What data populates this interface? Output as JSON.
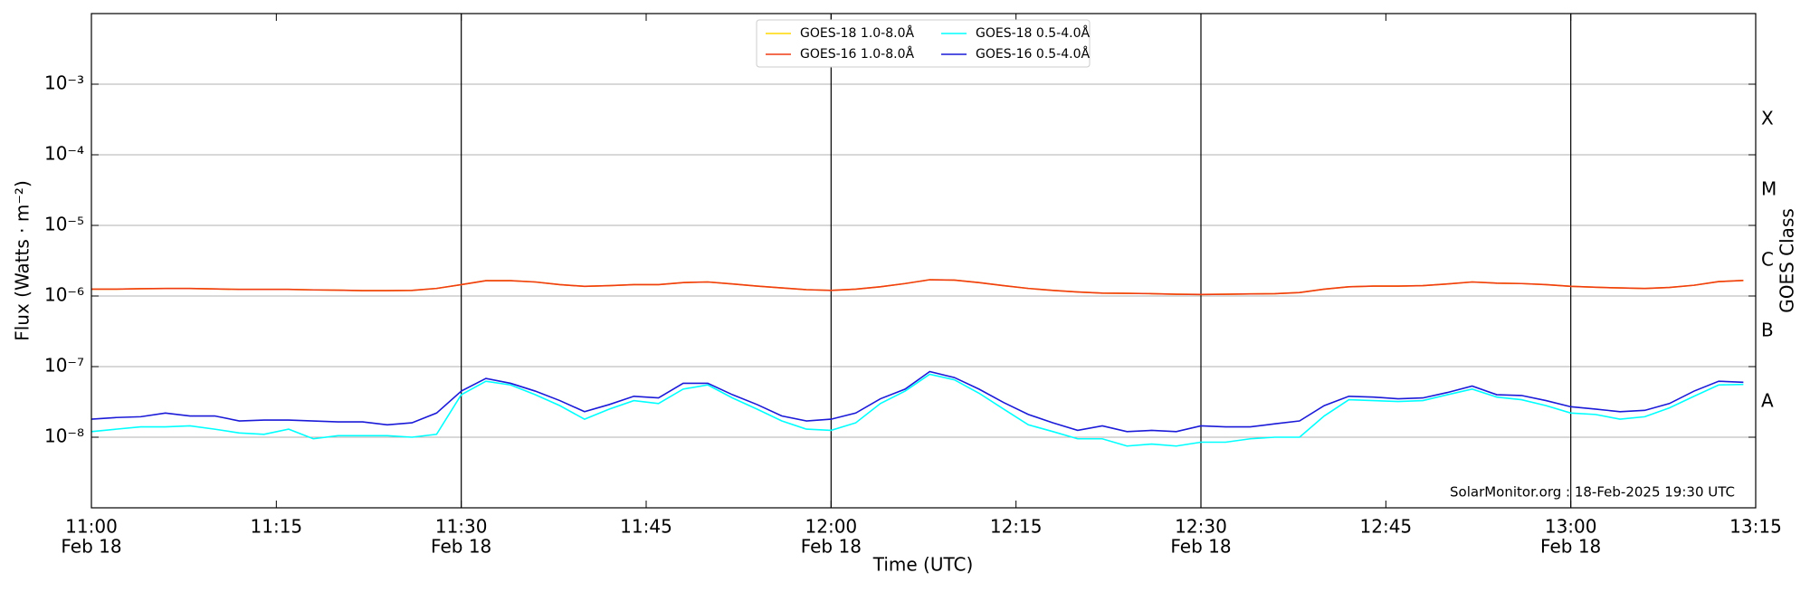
{
  "chart_data": {
    "type": "line",
    "xlabel": "Time (UTC)",
    "ylabel": "Flux (Watts · m⁻²)",
    "y2label": "GOES Class",
    "annotation": "SolarMonitor.org : 18-Feb-2025 19:30 UTC",
    "log_y": true,
    "grid": true,
    "legend": "upper center",
    "xlim": [
      "11:00",
      "13:15"
    ],
    "ylim": [
      1e-09,
      0.01
    ],
    "xticks": [
      {
        "value": "11:00",
        "label": "11:00",
        "sublabel": "Feb 18"
      },
      {
        "value": "11:15",
        "label": "11:15"
      },
      {
        "value": "11:30",
        "label": "11:30",
        "sublabel": "Feb 18"
      },
      {
        "value": "11:45",
        "label": "11:45"
      },
      {
        "value": "12:00",
        "label": "12:00",
        "sublabel": "Feb 18"
      },
      {
        "value": "12:15",
        "label": "12:15"
      },
      {
        "value": "12:30",
        "label": "12:30",
        "sublabel": "Feb 18"
      },
      {
        "value": "12:45",
        "label": "12:45"
      },
      {
        "value": "13:00",
        "label": "13:00",
        "sublabel": "Feb 18"
      },
      {
        "value": "13:15",
        "label": "13:15"
      }
    ],
    "yticks": [
      {
        "value": 1e-08,
        "label": "10⁻⁸"
      },
      {
        "value": 1e-07,
        "label": "10⁻⁷"
      },
      {
        "value": 1e-06,
        "label": "10⁻⁶"
      },
      {
        "value": 1e-05,
        "label": "10⁻⁵"
      },
      {
        "value": 0.0001,
        "label": "10⁻⁴"
      },
      {
        "value": 0.001,
        "label": "10⁻³"
      }
    ],
    "y2ticks": [
      {
        "value": 3.162e-08,
        "label": "A"
      },
      {
        "value": 3.162e-07,
        "label": "B"
      },
      {
        "value": 3.162e-06,
        "label": "C"
      },
      {
        "value": 3.162e-05,
        "label": "M"
      },
      {
        "value": 0.0003162,
        "label": "X"
      }
    ],
    "x": [
      "11:00",
      "11:02",
      "11:04",
      "11:06",
      "11:08",
      "11:10",
      "11:12",
      "11:14",
      "11:16",
      "11:18",
      "11:20",
      "11:22",
      "11:24",
      "11:26",
      "11:28",
      "11:30",
      "11:32",
      "11:34",
      "11:36",
      "11:38",
      "11:40",
      "11:42",
      "11:44",
      "11:46",
      "11:48",
      "11:50",
      "11:52",
      "11:54",
      "11:56",
      "11:58",
      "12:00",
      "12:02",
      "12:04",
      "12:06",
      "12:08",
      "12:10",
      "12:12",
      "12:14",
      "12:16",
      "12:18",
      "12:20",
      "12:22",
      "12:24",
      "12:26",
      "12:28",
      "12:30",
      "12:32",
      "12:34",
      "12:36",
      "12:38",
      "12:40",
      "12:42",
      "12:44",
      "12:46",
      "12:48",
      "12:50",
      "12:52",
      "12:54",
      "12:56",
      "12:58",
      "13:00",
      "13:02",
      "13:04",
      "13:06",
      "13:08",
      "13:10",
      "13:12",
      "13:14"
    ],
    "series": [
      {
        "name": "GOES-18 1.0-8.0Å",
        "color": "#ffd700",
        "values": [
          1.25e-06,
          1.25e-06,
          1.27e-06,
          1.28e-06,
          1.28e-06,
          1.26e-06,
          1.24e-06,
          1.24e-06,
          1.24e-06,
          1.22e-06,
          1.21e-06,
          1.19e-06,
          1.19e-06,
          1.2e-06,
          1.28e-06,
          1.45e-06,
          1.65e-06,
          1.65e-06,
          1.58e-06,
          1.45e-06,
          1.37e-06,
          1.4e-06,
          1.45e-06,
          1.45e-06,
          1.55e-06,
          1.58e-06,
          1.48e-06,
          1.38e-06,
          1.3e-06,
          1.23e-06,
          1.2e-06,
          1.25e-06,
          1.35e-06,
          1.5e-06,
          1.7e-06,
          1.68e-06,
          1.55e-06,
          1.4e-06,
          1.28e-06,
          1.2e-06,
          1.14e-06,
          1.1e-06,
          1.09e-06,
          1.08e-06,
          1.06e-06,
          1.05e-06,
          1.06e-06,
          1.07e-06,
          1.08e-06,
          1.12e-06,
          1.25e-06,
          1.35e-06,
          1.38e-06,
          1.38e-06,
          1.4e-06,
          1.48e-06,
          1.58e-06,
          1.52e-06,
          1.5e-06,
          1.45e-06,
          1.37e-06,
          1.33e-06,
          1.3e-06,
          1.28e-06,
          1.32e-06,
          1.42e-06,
          1.6e-06,
          1.66e-06
        ]
      },
      {
        "name": "GOES-16 1.0-8.0Å",
        "color": "#f03c14",
        "values": [
          1.25e-06,
          1.25e-06,
          1.27e-06,
          1.28e-06,
          1.28e-06,
          1.26e-06,
          1.24e-06,
          1.24e-06,
          1.24e-06,
          1.22e-06,
          1.21e-06,
          1.19e-06,
          1.19e-06,
          1.2e-06,
          1.28e-06,
          1.45e-06,
          1.65e-06,
          1.65e-06,
          1.58e-06,
          1.45e-06,
          1.37e-06,
          1.4e-06,
          1.45e-06,
          1.45e-06,
          1.55e-06,
          1.58e-06,
          1.48e-06,
          1.38e-06,
          1.3e-06,
          1.23e-06,
          1.2e-06,
          1.25e-06,
          1.35e-06,
          1.5e-06,
          1.7e-06,
          1.68e-06,
          1.55e-06,
          1.4e-06,
          1.28e-06,
          1.2e-06,
          1.14e-06,
          1.1e-06,
          1.09e-06,
          1.08e-06,
          1.06e-06,
          1.05e-06,
          1.06e-06,
          1.07e-06,
          1.08e-06,
          1.12e-06,
          1.25e-06,
          1.35e-06,
          1.38e-06,
          1.38e-06,
          1.4e-06,
          1.48e-06,
          1.58e-06,
          1.52e-06,
          1.5e-06,
          1.45e-06,
          1.37e-06,
          1.33e-06,
          1.3e-06,
          1.28e-06,
          1.32e-06,
          1.42e-06,
          1.6e-06,
          1.66e-06
        ]
      },
      {
        "name": "GOES-18 0.5-4.0Å",
        "color": "#00ffff",
        "values": [
          1.2e-08,
          1.3e-08,
          1.4e-08,
          1.4e-08,
          1.45e-08,
          1.3e-08,
          1.15e-08,
          1.1e-08,
          1.3e-08,
          9.5e-09,
          1.05e-08,
          1.05e-08,
          1.05e-08,
          1e-08,
          1.1e-08,
          4e-08,
          6.2e-08,
          5.5e-08,
          4e-08,
          2.8e-08,
          1.8e-08,
          2.5e-08,
          3.3e-08,
          3e-08,
          4.8e-08,
          5.5e-08,
          3.6e-08,
          2.5e-08,
          1.7e-08,
          1.3e-08,
          1.25e-08,
          1.6e-08,
          3e-08,
          4.5e-08,
          7.8e-08,
          6.5e-08,
          4.2e-08,
          2.5e-08,
          1.5e-08,
          1.2e-08,
          9.5e-09,
          9.5e-09,
          7.5e-09,
          8e-09,
          7.5e-09,
          8.5e-09,
          8.5e-09,
          9.5e-09,
          1e-08,
          1e-08,
          2e-08,
          3.4e-08,
          3.3e-08,
          3.2e-08,
          3.3e-08,
          4e-08,
          4.8e-08,
          3.7e-08,
          3.4e-08,
          2.8e-08,
          2.2e-08,
          2.1e-08,
          1.8e-08,
          1.95e-08,
          2.6e-08,
          3.8e-08,
          5.5e-08,
          5.6e-08
        ]
      },
      {
        "name": "GOES-16 0.5-4.0Å",
        "color": "#1a1ad8",
        "values": [
          1.8e-08,
          1.9e-08,
          1.95e-08,
          2.2e-08,
          2e-08,
          2e-08,
          1.7e-08,
          1.75e-08,
          1.75e-08,
          1.7e-08,
          1.65e-08,
          1.65e-08,
          1.5e-08,
          1.6e-08,
          2.2e-08,
          4.5e-08,
          6.8e-08,
          5.8e-08,
          4.5e-08,
          3.3e-08,
          2.3e-08,
          2.9e-08,
          3.8e-08,
          3.6e-08,
          5.8e-08,
          5.8e-08,
          4e-08,
          2.9e-08,
          2e-08,
          1.7e-08,
          1.8e-08,
          2.2e-08,
          3.5e-08,
          4.8e-08,
          8.5e-08,
          7e-08,
          4.8e-08,
          3.1e-08,
          2.1e-08,
          1.6e-08,
          1.25e-08,
          1.45e-08,
          1.2e-08,
          1.25e-08,
          1.2e-08,
          1.45e-08,
          1.4e-08,
          1.4e-08,
          1.55e-08,
          1.7e-08,
          2.8e-08,
          3.8e-08,
          3.7e-08,
          3.5e-08,
          3.6e-08,
          4.3e-08,
          5.3e-08,
          4e-08,
          3.9e-08,
          3.3e-08,
          2.7e-08,
          2.5e-08,
          2.3e-08,
          2.4e-08,
          3e-08,
          4.5e-08,
          6.2e-08,
          6e-08
        ]
      }
    ]
  }
}
